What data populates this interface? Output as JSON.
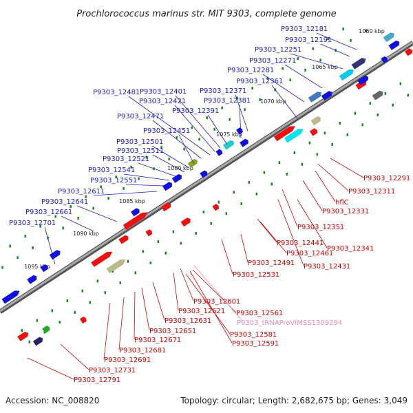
{
  "title": "Prochlorococcus marinus str. MIT 9303, complete genome",
  "accession": "Accession: NC_008820",
  "summary": "Topology: circular; Length: 2,682,675 bp; Genes: 3,049",
  "colors": {
    "forward": "#1111dd",
    "reverse": "#ee1111",
    "rna": "#ee88bb",
    "backbone": "#888888",
    "tick": "#118811"
  },
  "kbp_marks": [
    "1060 kbp",
    "1065 kbp",
    "1070 kbp",
    "1075 kbp",
    "1080 kbp",
    "1085 kbp",
    "1090 kbp",
    "1095 kbp"
  ],
  "top_labels": [
    "P9303_12181",
    "P9303_12191",
    "P9303_12251",
    "P9303_12271",
    "P9303_12281",
    "P9303_12361",
    "P9303_12371",
    "P9303_12381",
    "P9303_12391",
    "P9303_12401",
    "P9303_12421",
    "P9303_12481",
    "P9303_12471",
    "P9303_12451",
    "P9303_12501",
    "P9303_12511",
    "P9303_12521",
    "P9303_12541",
    "P9303_12551",
    "P9303_12611",
    "P9303_12641",
    "P9303_12661",
    "P9303_12701"
  ],
  "bottom_labels": [
    "P9303_12291",
    "P9303_12311",
    "hflC",
    "P9303_12331",
    "P9303_12351",
    "P9303_12341",
    "P9303_12441",
    "P9303_12461",
    "P9303_12431",
    "P9303_12491",
    "P9303_12531",
    "P9303_12601",
    "P9303_12621",
    "P9303_12561",
    "P9303_12631",
    "P9303_12651",
    "P9303_12581",
    "P9303_12591",
    "P9303_12671",
    "P9303_12681",
    "P9303_12691",
    "P9303_12731",
    "P9303_12791"
  ],
  "rna_labels": [
    "P9303_tRNAProVIMSS1309294"
  ]
}
